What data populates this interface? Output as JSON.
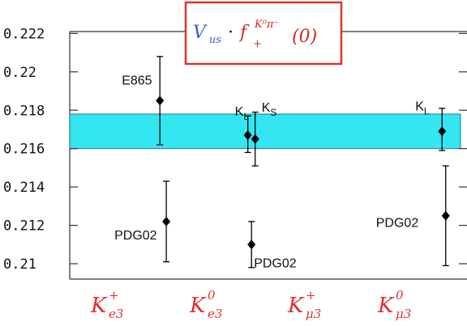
{
  "chart_data": {
    "type": "scatter",
    "title": {
      "main": "V",
      "main_sub": "us",
      "dot": "·",
      "f": "f",
      "f_sub": "+",
      "f_sup": "K⁰π⁻",
      "arg": "(0)"
    },
    "categories": [
      {
        "main": "K",
        "sup": "+",
        "sub": "e3"
      },
      {
        "main": "K",
        "sup": "0",
        "sub": "e3"
      },
      {
        "main": "K",
        "sup": "+",
        "sub": "μ3"
      },
      {
        "main": "K",
        "sup": "0",
        "sub": "μ3"
      }
    ],
    "yticks": [
      "0.222",
      "0.22",
      "0.218",
      "0.216",
      "0.214",
      "0.212",
      "0.21"
    ],
    "ylim": [
      0.2092,
      0.2221
    ],
    "band": {
      "low": 0.216,
      "high": 0.2178,
      "color": "#33e6f2"
    },
    "points": [
      {
        "x": 0.4,
        "y": 0.2185,
        "err_low": 0.2162,
        "err_high": 0.2208,
        "label": "E865",
        "label_sub": ""
      },
      {
        "x": 0.47,
        "y": 0.2122,
        "err_low": 0.2101,
        "err_high": 0.2143,
        "label": "PDG02",
        "label_sub": ""
      },
      {
        "x": 1.36,
        "y": 0.2167,
        "err_low": 0.2158,
        "err_high": 0.2177,
        "label": "K",
        "label_sub": "L"
      },
      {
        "x": 1.44,
        "y": 0.2165,
        "err_low": 0.2151,
        "err_high": 0.2179,
        "label": "K",
        "label_sub": "S"
      },
      {
        "x": 1.4,
        "y": 0.211,
        "err_low": 0.2098,
        "err_high": 0.2122,
        "label": "PDG02",
        "label_sub": ""
      },
      {
        "x": 3.48,
        "y": 0.2169,
        "err_low": 0.2159,
        "err_high": 0.2181,
        "label": "K",
        "label_sub": "L"
      },
      {
        "x": 3.52,
        "y": 0.2125,
        "err_low": 0.2099,
        "err_high": 0.2151,
        "label": "PDG02",
        "label_sub": ""
      }
    ],
    "colors": {
      "frame": "#333333",
      "box": "#e03131",
      "points": "#000000"
    }
  }
}
